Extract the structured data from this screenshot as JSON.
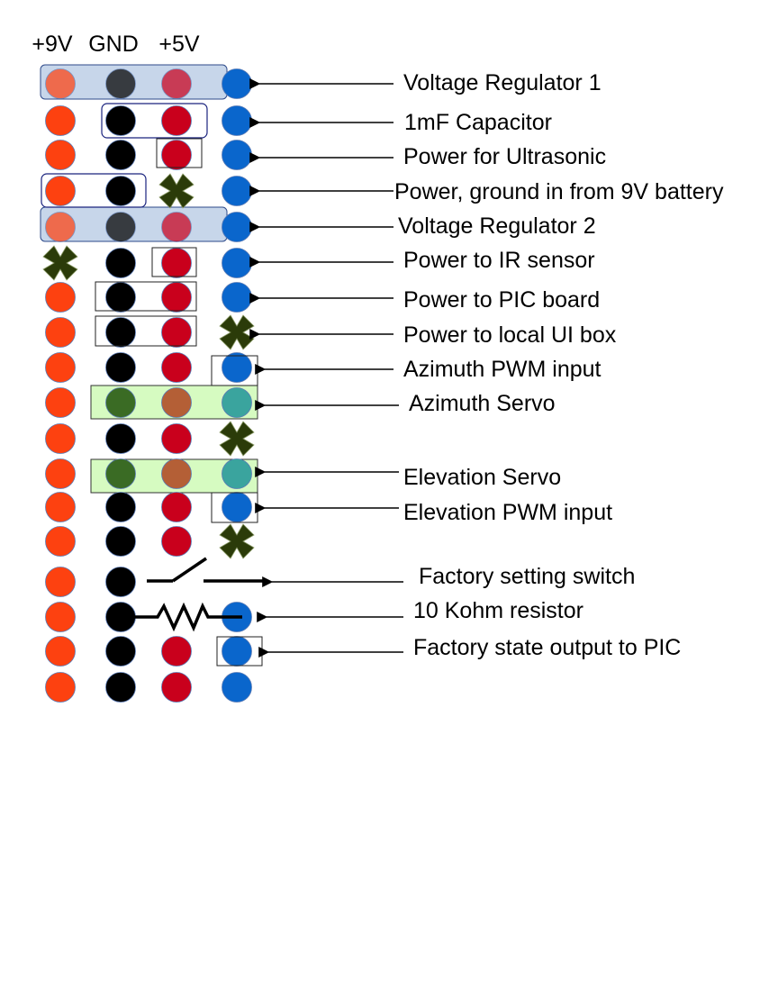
{
  "headers": {
    "col1": "+9V",
    "col2": "GND",
    "col3": "+5V"
  },
  "labels": {
    "vreg1": "Voltage Regulator 1",
    "cap": "1mF Capacitor",
    "ultrasonic": "Power for Ultrasonic",
    "power_in": "Power, ground in from 9V battery",
    "vreg2": "Voltage Regulator 2",
    "ir": "Power to IR sensor",
    "pic_board": "Power to PIC board",
    "ui_box": "Power to local UI box",
    "az_pwm": "Azimuth PWM input",
    "az_servo": "Azimuth Servo",
    "el_servo": "Elevation Servo",
    "el_pwm": "Elevation PWM input",
    "switch": "Factory setting switch",
    "resistor": "10 Kohm resistor",
    "factory_out": "Factory state output to PIC"
  },
  "colors": {
    "rail_9v": "#fd4110",
    "rail_gnd": "#000000",
    "rail_5v": "#c9001c",
    "signal": "#0a66cc",
    "unused": "#2b3b09",
    "regulator_fill": "#c7d6ea",
    "servo_fill": "#d6fbc1",
    "servo_gnd": "#3a6b24",
    "servo_pwr": "#b45f36",
    "servo_sig": "#3aa49e"
  },
  "pin_grid": {
    "rows": [
      [
        "9v",
        "gnd",
        "5v",
        "sig"
      ],
      [
        "9v",
        "gnd",
        "5v",
        "sig"
      ],
      [
        "9v",
        "gnd",
        "5v",
        "sig"
      ],
      [
        "9v",
        "gnd",
        "x",
        "sig"
      ],
      [
        "9v",
        "gnd",
        "5v",
        "sig"
      ],
      [
        "x",
        "gnd",
        "5v",
        "sig"
      ],
      [
        "9v",
        "gnd",
        "5v",
        "sig"
      ],
      [
        "9v",
        "gnd",
        "5v",
        "x"
      ],
      [
        "9v",
        "gnd",
        "5v",
        "sig"
      ],
      [
        "9v",
        "servo_gnd",
        "servo_pwr",
        "servo_sig"
      ],
      [
        "9v",
        "gnd",
        "5v",
        "x"
      ],
      [
        "9v",
        "servo_gnd",
        "servo_pwr",
        "servo_sig"
      ],
      [
        "9v",
        "gnd",
        "5v",
        "sig"
      ],
      [
        "9v",
        "gnd",
        "5v",
        "x"
      ],
      [
        "9v",
        "gnd",
        "none",
        "none"
      ],
      [
        "9v",
        "gnd",
        "none",
        "sig"
      ],
      [
        "9v",
        "gnd",
        "5v",
        "sig"
      ],
      [
        "9v",
        "gnd",
        "5v",
        "sig"
      ]
    ]
  }
}
